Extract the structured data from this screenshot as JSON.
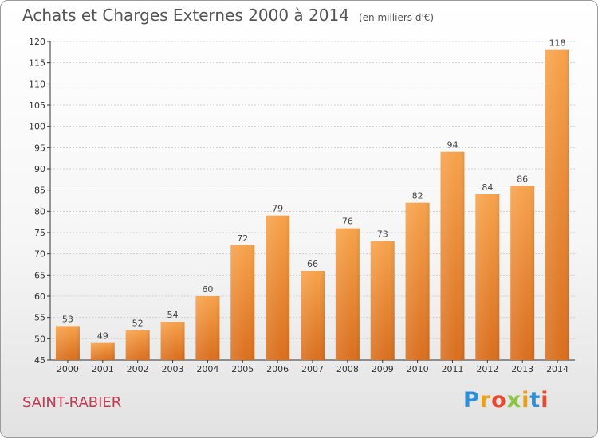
{
  "header": {
    "title": "Achats et Charges Externes 2000 à 2014",
    "unit": "(en milliers d'€)"
  },
  "footer": {
    "city": "SAINT-RABIER",
    "logo_letters": [
      "P",
      "r",
      "o",
      "x",
      "i",
      "t",
      "i"
    ],
    "logo_colors": [
      "#2f8fd6",
      "#e8a020",
      "#e84a30",
      "#8cc63f",
      "#e8a020",
      "#2f8fd6",
      "#e84a30"
    ]
  },
  "colors": {
    "bar_light": "#f7a24b",
    "bar_dark": "#d96e1e",
    "grid": "#d0d0d0",
    "city": "#c43a4f"
  },
  "chart_data": {
    "type": "bar",
    "title": "Achats et Charges Externes 2000 à 2014",
    "subtitle": "(en milliers d'€)",
    "categories": [
      "2000",
      "2001",
      "2002",
      "2003",
      "2004",
      "2005",
      "2006",
      "2007",
      "2008",
      "2009",
      "2010",
      "2011",
      "2012",
      "2013",
      "2014"
    ],
    "values": [
      53,
      49,
      52,
      54,
      60,
      72,
      79,
      66,
      76,
      73,
      82,
      94,
      84,
      86,
      118
    ],
    "ylim": [
      45,
      120
    ],
    "yticks": [
      45,
      50,
      55,
      60,
      65,
      70,
      75,
      80,
      85,
      90,
      95,
      100,
      105,
      110,
      115,
      120
    ],
    "grid": true,
    "xlabel": "",
    "ylabel": ""
  }
}
